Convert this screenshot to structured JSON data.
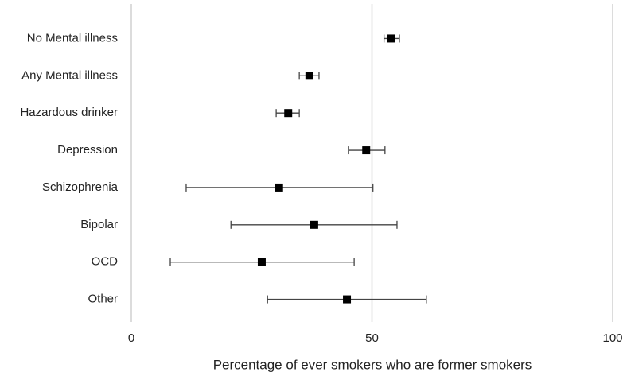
{
  "chart_data": {
    "type": "forest",
    "x_label": "Percentage of ever smokers who are former smokers",
    "categories": [
      "No Mental illness",
      "Any Mental illness",
      "Hazardous drinker",
      "Depression",
      "Schizophrenia",
      "Bipolar",
      "OCD",
      "Other"
    ],
    "values": [
      54.0,
      37.0,
      32.6,
      48.8,
      30.7,
      38.0,
      27.1,
      44.8
    ],
    "lower": [
      52.5,
      34.9,
      30.1,
      45.1,
      11.4,
      20.7,
      8.1,
      28.3
    ],
    "upper": [
      55.7,
      39.0,
      34.9,
      52.7,
      50.2,
      55.2,
      46.3,
      61.3
    ],
    "color": "#000000",
    "xlim": [
      0,
      100
    ],
    "xticks": [
      0,
      50,
      100
    ],
    "grid": true
  }
}
